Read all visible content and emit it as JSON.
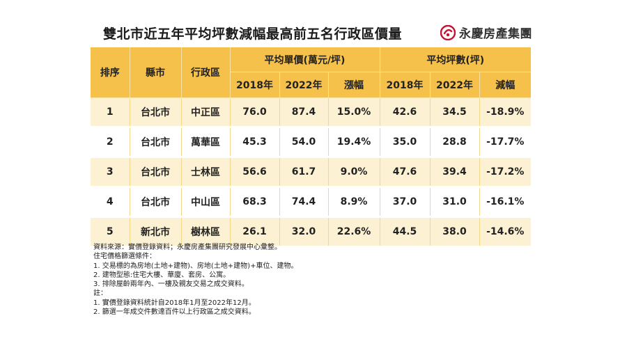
{
  "title": "雙北市近五年平均坪數減幅最高前五名行政區價量",
  "logo": {
    "text": "永慶房產集團",
    "icon": "yungching-logo-icon",
    "color": "#c8102e"
  },
  "table": {
    "headers": {
      "rank": "排序",
      "county": "縣市",
      "district": "行政區",
      "price_group": "平均單價(萬元/坪)",
      "area_group": "平均坪數(坪)",
      "sub": [
        "2018年",
        "2022年",
        "漲幅",
        "2018年",
        "2022年",
        "減幅"
      ]
    },
    "rows": [
      [
        "1",
        "台北市",
        "中正區",
        "76.0",
        "87.4",
        "15.0%",
        "42.6",
        "34.5",
        "-18.9%"
      ],
      [
        "2",
        "台北市",
        "萬華區",
        "45.3",
        "54.0",
        "19.4%",
        "35.0",
        "28.8",
        "-17.7%"
      ],
      [
        "3",
        "台北市",
        "士林區",
        "56.6",
        "61.7",
        "9.0%",
        "47.6",
        "39.4",
        "-17.2%"
      ],
      [
        "4",
        "台北市",
        "中山區",
        "68.3",
        "74.4",
        "8.9%",
        "37.0",
        "31.0",
        "-16.1%"
      ],
      [
        "5",
        "新北市",
        "樹林區",
        "26.1",
        "32.0",
        "22.6%",
        "44.5",
        "38.0",
        "-14.6%"
      ]
    ]
  },
  "notes": [
    "資料來源：實價登錄資料；永慶房產集團研究發展中心彙整。",
    "住宅價格篩選條件：",
    "1. 交易標的為房地(土地+建物)、房地(土地+建物)+車位、建物。",
    "2. 建物型態:住宅大樓、華廈、套房、公寓。",
    "3. 排除屋齡兩年內、一樓及親友交易之成交資料。",
    "註：",
    "1. 實價登錄資料統計自2018年1月至2022年12月。",
    "2. 篩選一年成交件數達百件以上行政區之成交資料。"
  ],
  "colors": {
    "header": "#f5c14a",
    "row_alt": "#fdf1d3"
  }
}
